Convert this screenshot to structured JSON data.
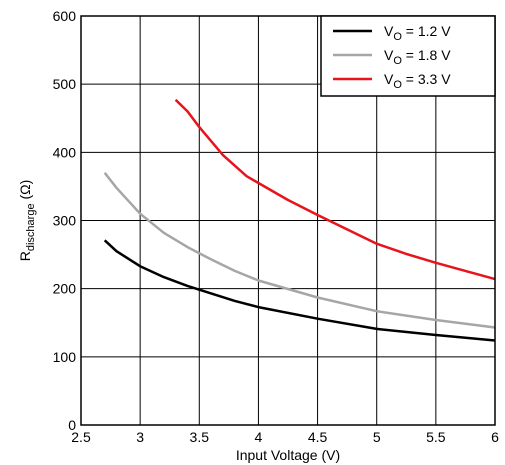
{
  "chart_data": {
    "type": "line",
    "xlabel": "Input Voltage (V)",
    "ylabel": {
      "main": "R",
      "sub": "discharge",
      "unit": " (Ω)"
    },
    "xlim": [
      2.5,
      6
    ],
    "ylim": [
      0,
      600
    ],
    "xticks": [
      2.5,
      3,
      3.5,
      4,
      4.5,
      5,
      5.5,
      6
    ],
    "yticks": [
      0,
      100,
      200,
      300,
      400,
      500,
      600
    ],
    "grid": true,
    "legend_position": "top-right",
    "series": [
      {
        "name": {
          "base": "V",
          "sub": "O",
          "rest": " = 1.2 V"
        },
        "color": "#000000",
        "points": [
          [
            2.7,
            271
          ],
          [
            2.8,
            255
          ],
          [
            3.0,
            233
          ],
          [
            3.2,
            217
          ],
          [
            3.4,
            204
          ],
          [
            3.6,
            193
          ],
          [
            3.8,
            182
          ],
          [
            4.0,
            173
          ],
          [
            4.5,
            156
          ],
          [
            5.0,
            141
          ],
          [
            5.5,
            132
          ],
          [
            6.0,
            124
          ]
        ]
      },
      {
        "name": {
          "base": "V",
          "sub": "O",
          "rest": " = 1.8 V"
        },
        "color": "#a6a6a6",
        "points": [
          [
            2.7,
            370
          ],
          [
            2.8,
            348
          ],
          [
            3.0,
            310
          ],
          [
            3.2,
            282
          ],
          [
            3.4,
            261
          ],
          [
            3.6,
            243
          ],
          [
            3.8,
            226
          ],
          [
            4.0,
            212
          ],
          [
            4.5,
            187
          ],
          [
            5.0,
            167
          ],
          [
            5.5,
            154
          ],
          [
            6.0,
            143
          ]
        ]
      },
      {
        "name": {
          "base": "V",
          "sub": "O",
          "rest": " = 3.3 V"
        },
        "color": "#e8141b",
        "points": [
          [
            3.3,
            477
          ],
          [
            3.4,
            460
          ],
          [
            3.5,
            437
          ],
          [
            3.7,
            396
          ],
          [
            3.9,
            365
          ],
          [
            4.0,
            355
          ],
          [
            4.25,
            330
          ],
          [
            4.5,
            308
          ],
          [
            4.75,
            287
          ],
          [
            5.0,
            266
          ],
          [
            5.25,
            251
          ],
          [
            5.5,
            238
          ],
          [
            5.75,
            226
          ],
          [
            6.0,
            214
          ]
        ]
      }
    ]
  }
}
